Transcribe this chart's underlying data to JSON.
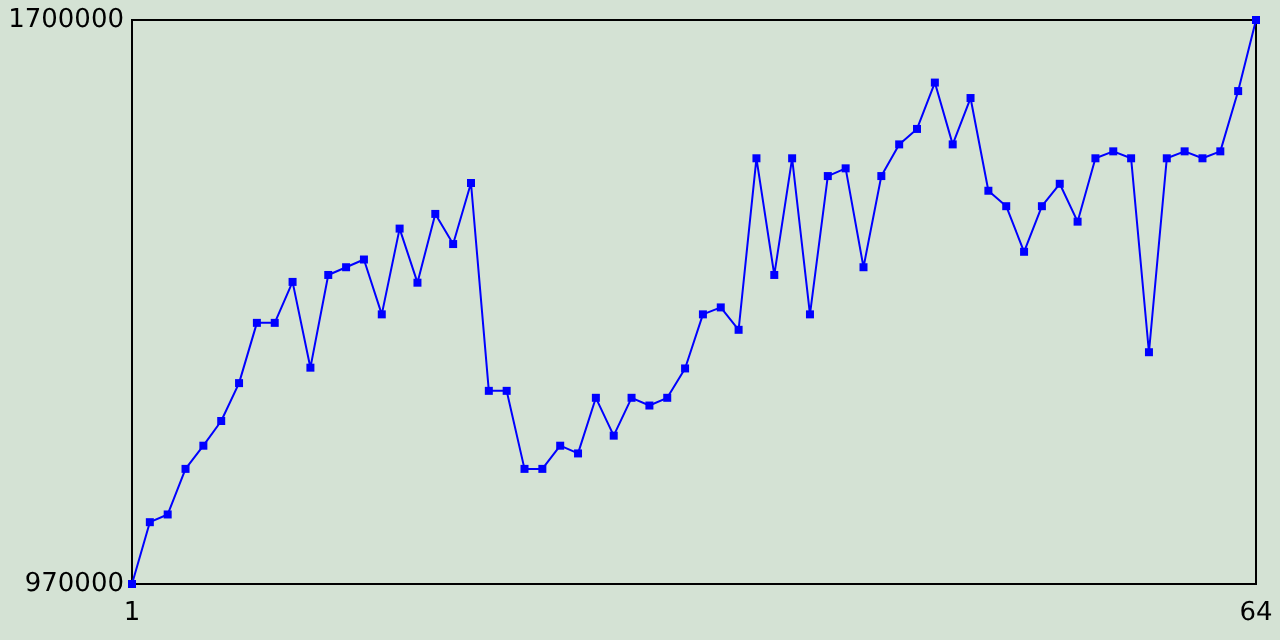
{
  "chart_data": {
    "type": "line",
    "x": [
      1,
      2,
      3,
      4,
      5,
      6,
      7,
      8,
      9,
      10,
      11,
      12,
      13,
      14,
      15,
      16,
      17,
      18,
      19,
      20,
      21,
      22,
      23,
      24,
      25,
      26,
      27,
      28,
      29,
      30,
      31,
      32,
      33,
      34,
      35,
      36,
      37,
      38,
      39,
      40,
      41,
      42,
      43,
      44,
      45,
      46,
      47,
      48,
      49,
      50,
      51,
      52,
      53,
      54,
      55,
      56,
      57,
      58,
      59,
      60,
      61,
      62,
      63,
      64
    ],
    "series": [
      {
        "color": "#0000ff",
        "values": [
          970000,
          1050000,
          1060000,
          1119000,
          1149000,
          1181000,
          1230000,
          1308000,
          1308000,
          1361000,
          1250000,
          1370000,
          1380000,
          1390000,
          1319000,
          1430000,
          1360000,
          1449000,
          1410000,
          1489000,
          1220000,
          1220000,
          1119000,
          1119000,
          1149000,
          1139000,
          1211000,
          1162000,
          1211000,
          1201000,
          1211000,
          1249000,
          1319000,
          1328000,
          1299000,
          1521000,
          1370000,
          1521000,
          1319000,
          1498000,
          1508000,
          1380000,
          1498000,
          1539000,
          1559000,
          1619000,
          1539000,
          1599000,
          1479000,
          1459000,
          1400000,
          1459000,
          1488000,
          1439000,
          1521000,
          1530000,
          1521000,
          1270000,
          1521000,
          1530000,
          1521000,
          1530000,
          1608000,
          1700000
        ]
      }
    ],
    "xlim": [
      1,
      64
    ],
    "xticks": [
      1,
      64
    ],
    "ylim": [
      970000,
      1700000
    ],
    "yticks": [
      970000,
      1700000
    ],
    "marker": "square",
    "line_style": "solid"
  }
}
